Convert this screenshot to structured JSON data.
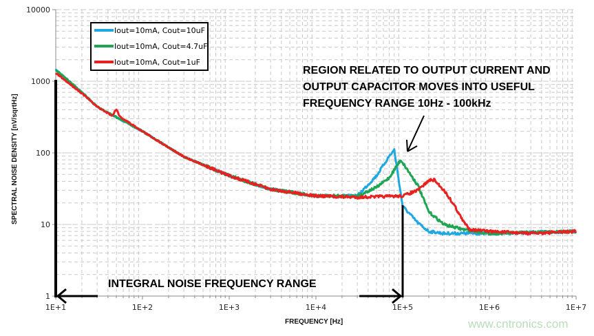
{
  "chart_data": {
    "type": "line",
    "xlabel": "FREQUENCY  [Hz]",
    "ylabel": "SPECTRAL  NOISE DENSITY  [nV/sqrtHz]",
    "xscale": "log",
    "yscale": "log",
    "xlim": [
      10,
      10000000
    ],
    "ylim": [
      1,
      10000
    ],
    "x_tick_labels": [
      "1E+1",
      "1E+2",
      "1E+3",
      "1E+4",
      "1E+5",
      "1E+6",
      "1E+7"
    ],
    "y_tick_labels": [
      "1",
      "10",
      "100",
      "1000",
      "10000"
    ],
    "grid": true,
    "legend_position": "top-left",
    "series": [
      {
        "name": "Iout=10mA, Cout=10uF",
        "color": "#1ea7e1",
        "x": [
          10,
          20,
          30,
          100,
          300,
          1000,
          3000,
          10000,
          30000,
          50000,
          70000,
          80000,
          100000,
          150000,
          200000,
          300000,
          1000000,
          10000000
        ],
        "y": [
          1450,
          700,
          440,
          200,
          88,
          48,
          31,
          25,
          25,
          48,
          90,
          110,
          18,
          10.5,
          8,
          7.5,
          7.5,
          8
        ]
      },
      {
        "name": "Iout=10mA, Cout=4.7uF",
        "color": "#1fa552",
        "x": [
          10,
          20,
          30,
          100,
          300,
          1000,
          3000,
          10000,
          30000,
          50000,
          70000,
          95000,
          150000,
          200000,
          300000,
          500000,
          1000000,
          10000000
        ],
        "y": [
          1450,
          700,
          440,
          200,
          88,
          48,
          31,
          25,
          25,
          33,
          45,
          80,
          35,
          15,
          10,
          8.5,
          7.5,
          8
        ]
      },
      {
        "name": "Iout=10mA, Cout=1uF",
        "color": "#e8201e",
        "x": [
          10,
          20,
          30,
          45,
          50,
          55,
          100,
          300,
          1000,
          3000,
          10000,
          30000,
          100000,
          150000,
          200000,
          230000,
          300000,
          400000,
          500000,
          600000,
          1000000,
          3000000,
          10000000
        ],
        "y": [
          1300,
          680,
          440,
          330,
          410,
          320,
          200,
          88,
          48,
          31,
          25,
          24,
          25,
          30,
          41,
          42,
          30,
          18,
          11,
          8.5,
          8,
          7.5,
          8
        ]
      }
    ]
  },
  "annotations": {
    "region_lines": [
      "REGION RELATED TO OUTPUT CURRENT AND",
      "OUTPUT CAPACITOR MOVES INTO USEFUL",
      "FREQUENCY RANGE 10Hz - 100kHz"
    ],
    "integral": "INTEGRAL NOISE FREQUENCY RANGE"
  },
  "watermark": "www.cntronics.com"
}
